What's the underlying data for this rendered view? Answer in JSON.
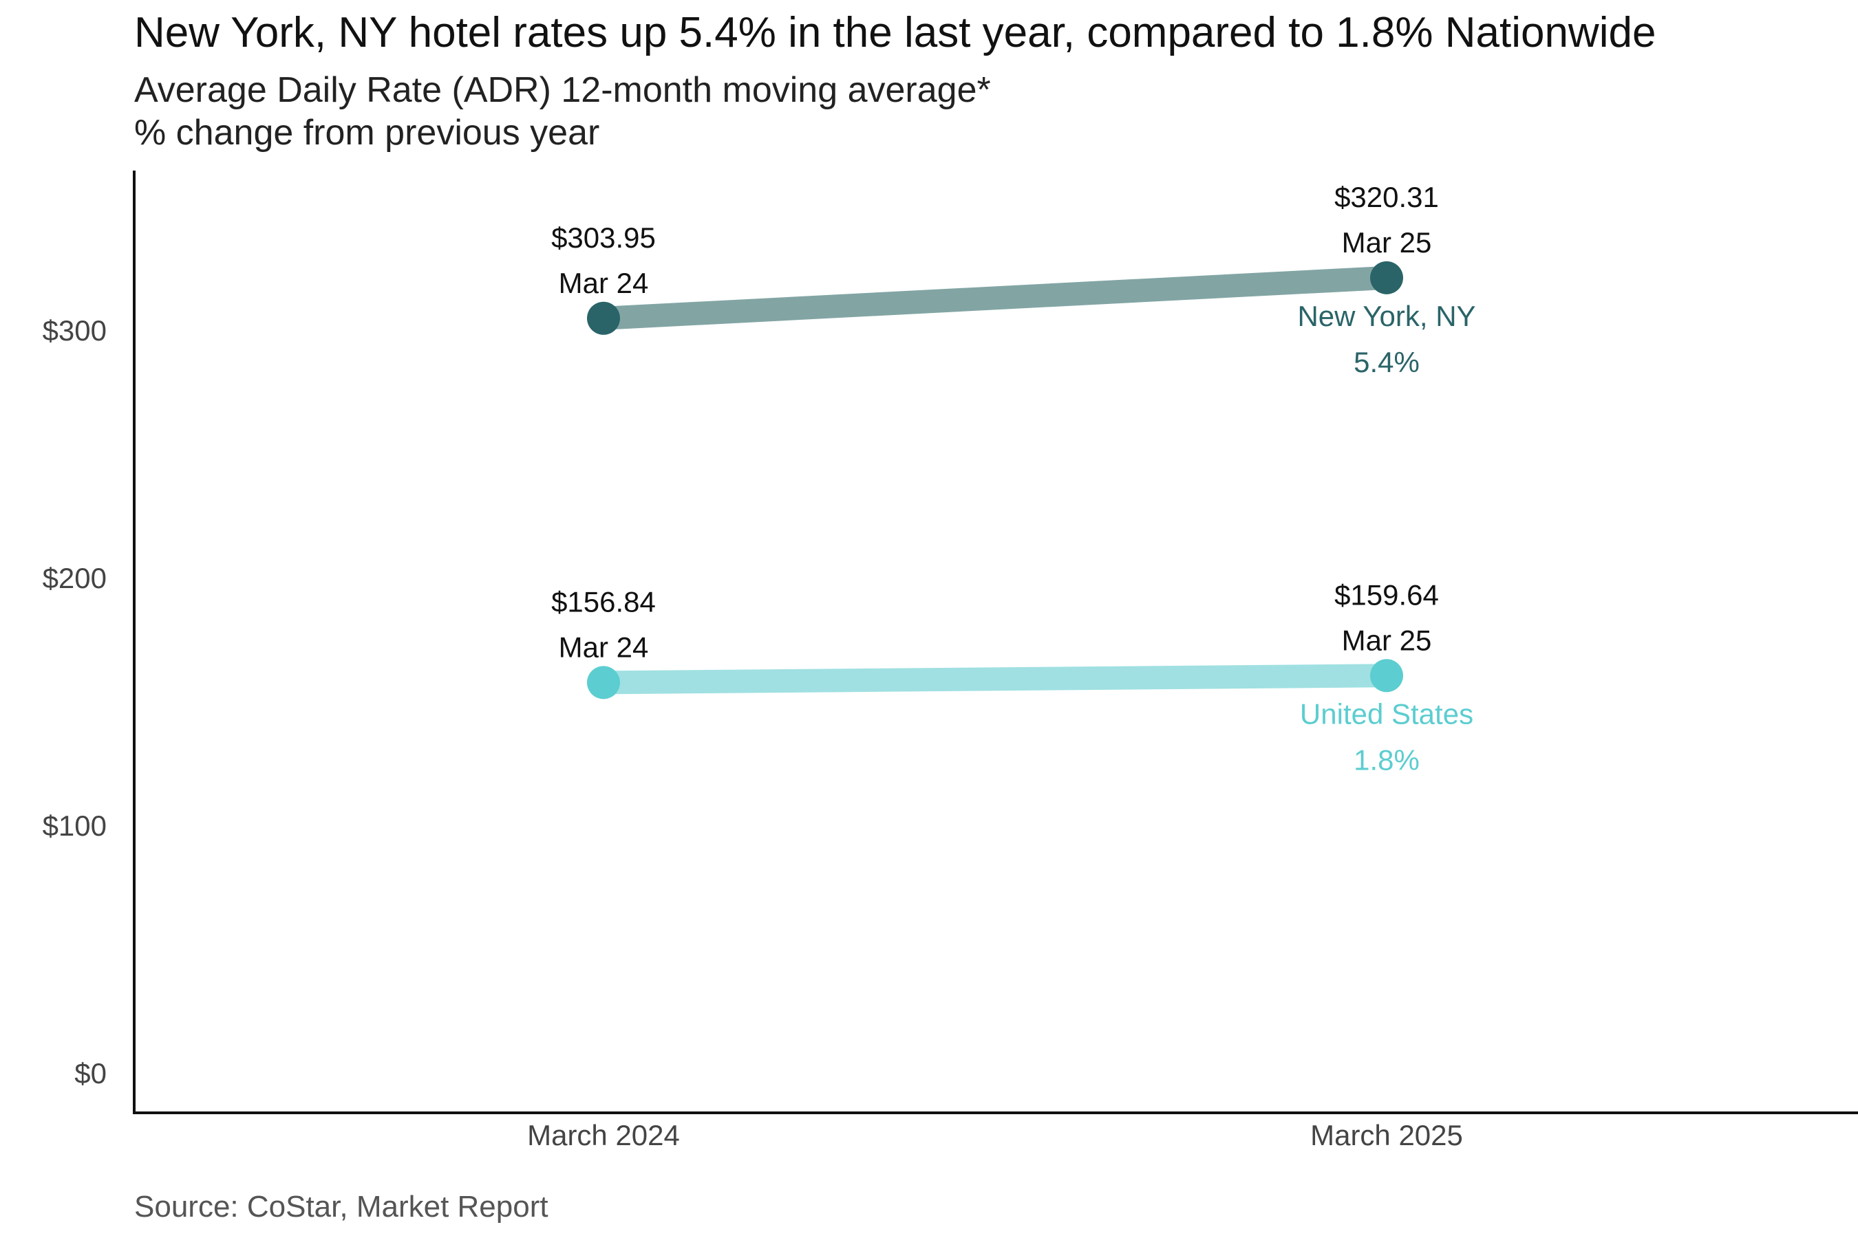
{
  "header": {
    "title": "New York, NY hotel rates up 5.4% in the last year, compared to 1.8% Nationwide",
    "subtitle_line1": "Average Daily Rate (ADR) 12-month moving average*",
    "subtitle_line2": "% change from previous year"
  },
  "footer": {
    "source": "Source: CoStar, Market Report"
  },
  "chart_data": {
    "type": "line",
    "title": "New York, NY hotel rates up 5.4% in the last year, compared to 1.8% Nationwide",
    "subtitle": "Average Daily Rate (ADR) 12-month moving average* % change from previous year",
    "xlabel": "",
    "ylabel": "",
    "categories": [
      "March 2024",
      "March 2025"
    ],
    "ylim": [
      0,
      360
    ],
    "yticks": [
      0,
      100,
      200,
      300
    ],
    "ytick_labels": [
      "$0",
      "$100",
      "$200",
      "$300"
    ],
    "grid": false,
    "series": [
      {
        "name": "New York, NY",
        "change_label": "5.4%",
        "values": [
          303.95,
          320.31
        ],
        "value_labels": [
          "$303.95",
          "$320.31"
        ],
        "date_labels": [
          "Mar 24",
          "Mar 25"
        ],
        "line_color": "#82a5a4",
        "point_color": "#2a6468",
        "label_color": "#2a6468"
      },
      {
        "name": "United States",
        "change_label": "1.8%",
        "values": [
          156.84,
          159.64
        ],
        "value_labels": [
          "$156.84",
          "$159.64"
        ],
        "date_labels": [
          "Mar 24",
          "Mar 25"
        ],
        "line_color": "#a0e0e2",
        "point_color": "#5ccdd0",
        "label_color": "#5ccdd0"
      }
    ]
  }
}
